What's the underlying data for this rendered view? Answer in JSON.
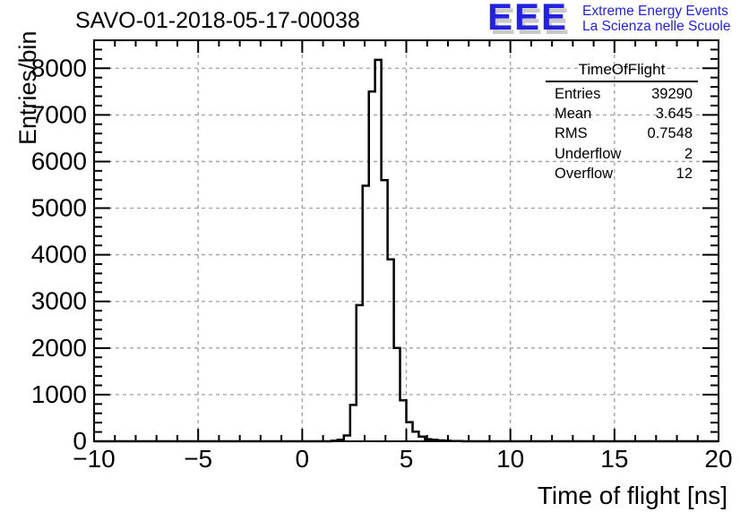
{
  "title": "SAVO-01-2018-05-17-00038",
  "logo": {
    "mark": "EEE",
    "tagline1": "Extreme Energy Events",
    "tagline2": "La Scienza nelle Scuole",
    "blue": "#2222e0",
    "shadow_gray": "#c9c9c9"
  },
  "stats": {
    "title": "TimeOfFlight",
    "rows": [
      {
        "label": "Entries",
        "value": "39290"
      },
      {
        "label": "Mean",
        "value": "3.645"
      },
      {
        "label": "RMS",
        "value": "0.7548"
      },
      {
        "label": "Underflow",
        "value": "2"
      },
      {
        "label": "Overflow",
        "value": "12"
      }
    ]
  },
  "chart_data": {
    "type": "bar",
    "subtype": "step-histogram",
    "title": "SAVO-01-2018-05-17-00038",
    "xlabel": "Time of flight [ns]",
    "ylabel": "Entries/bin",
    "xlim": [
      -10,
      20
    ],
    "ylim": [
      0,
      8600
    ],
    "x_major_ticks": [
      -10,
      -5,
      0,
      5,
      10,
      15,
      20
    ],
    "x_tick_labels": [
      "−10",
      "−5",
      "0",
      "5",
      "10",
      "15",
      "20"
    ],
    "x_minor_step": 1,
    "y_major_ticks": [
      0,
      1000,
      2000,
      3000,
      4000,
      5000,
      6000,
      7000,
      8000
    ],
    "y_tick_labels": [
      "0",
      "1000",
      "2000",
      "3000",
      "4000",
      "5000",
      "6000",
      "7000",
      "8000"
    ],
    "y_minor_step": 200,
    "grid": {
      "show": true,
      "color": "#a0a0a0",
      "dash": [
        4,
        4
      ]
    },
    "bin_width": 0.3,
    "bin_left_edges": [
      1.4,
      1.7,
      2.0,
      2.3,
      2.6,
      2.9,
      3.2,
      3.5,
      3.8,
      4.1,
      4.4,
      4.7,
      5.0,
      5.3,
      5.6,
      5.9,
      6.2,
      6.5,
      6.8,
      7.1,
      7.4
    ],
    "counts": [
      12,
      30,
      125,
      780,
      2920,
      5480,
      7500,
      8180,
      5600,
      3900,
      2000,
      880,
      410,
      205,
      100,
      45,
      30,
      20,
      12,
      6,
      3
    ],
    "peak": {
      "x_bin": [
        3.5,
        3.8
      ],
      "count": 8180
    },
    "line_color": "#000000",
    "line_width": 2.5,
    "legend_position": "none",
    "stats_box": {
      "title": "TimeOfFlight",
      "entries": 39290,
      "mean": 3.645,
      "rms": 0.7548,
      "underflow": 2,
      "overflow": 12
    }
  }
}
